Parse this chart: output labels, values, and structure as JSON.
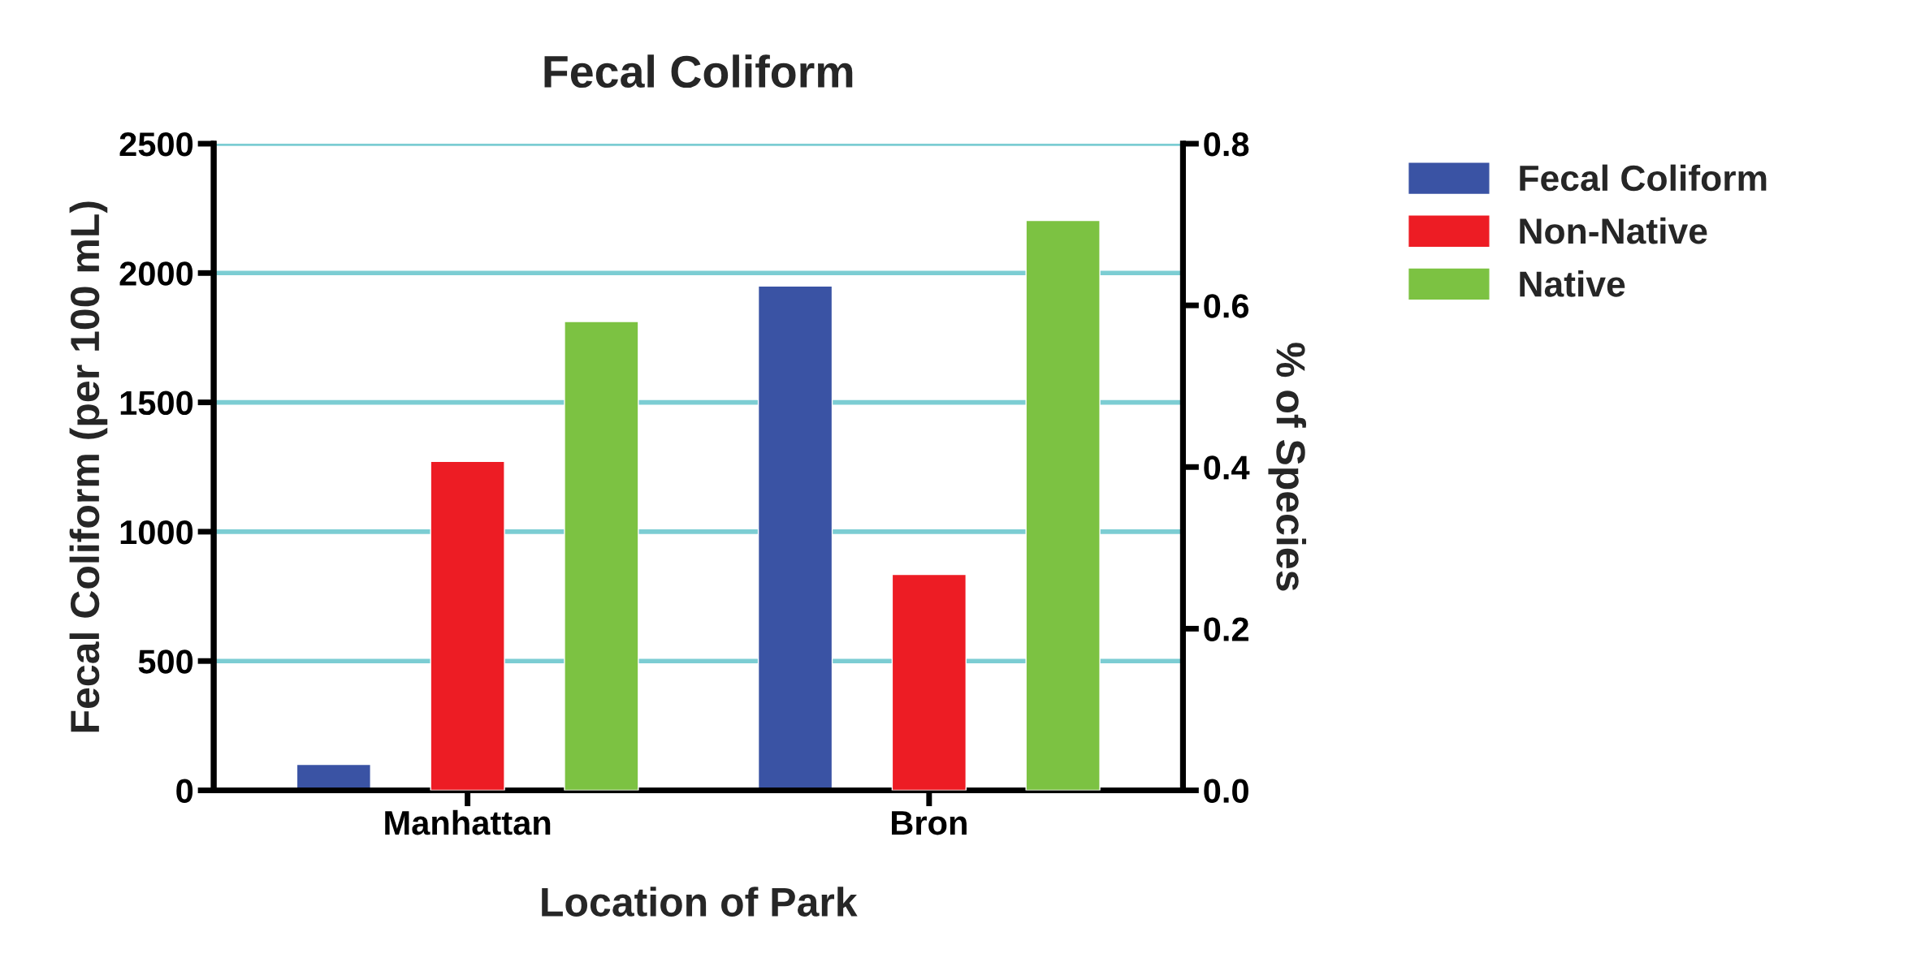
{
  "chart_data": {
    "type": "bar",
    "title": "Fecal Coliform",
    "xlabel": "Location of Park",
    "ylabel": "Fecal Coliform (per 100 mL)",
    "y2label": "% of Species",
    "categories": [
      "Manhattan",
      "Bron"
    ],
    "series": [
      {
        "name": "Fecal Coliform",
        "color": "#3a53a4",
        "values": [
          100,
          1950
        ]
      },
      {
        "name": "Non-Native",
        "color": "#ed1c24",
        "values": [
          0.407,
          0.267
        ],
        "axis": "y2"
      },
      {
        "name": "Native",
        "color": "#7cc242",
        "values": [
          0.58,
          0.705
        ],
        "axis": "y2"
      }
    ],
    "ylim": [
      0,
      2500
    ],
    "yticks": [
      0,
      500,
      1000,
      1500,
      2000,
      2500
    ],
    "y2lim": [
      0,
      0.8
    ],
    "y2ticks": [
      {
        "value": 0,
        "label": "0.0"
      },
      0.2,
      0.4,
      0.6,
      0.8
    ],
    "grid": "y",
    "legend": "top right"
  }
}
